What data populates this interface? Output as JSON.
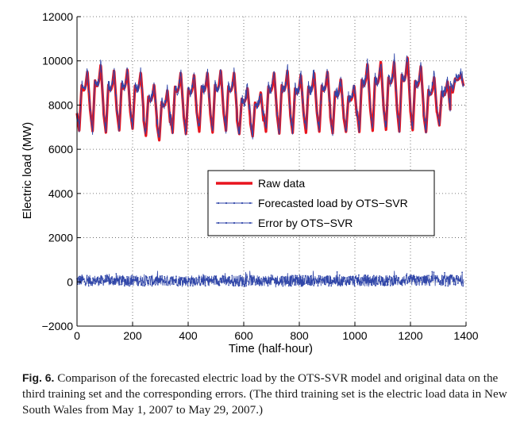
{
  "chart_data": {
    "type": "line",
    "title": "",
    "xlabel": "Time (half-hour)",
    "ylabel": "Electric load (MW)",
    "xlim": [
      0,
      1400
    ],
    "ylim": [
      -2000,
      12000
    ],
    "xticks": [
      0,
      200,
      400,
      600,
      800,
      1000,
      1200,
      1400
    ],
    "yticks": [
      -2000,
      0,
      2000,
      4000,
      6000,
      8000,
      10000,
      12000
    ],
    "grid": "dotted",
    "legend_position": "center-right",
    "days": 29,
    "points_per_day": 48,
    "daily_peaks": [
      9550,
      9850,
      9600,
      9650,
      9500,
      8950,
      8700,
      9500,
      9400,
      9500,
      9600,
      9500,
      8800,
      8600,
      9500,
      9600,
      9400,
      9500,
      9550,
      9200,
      8900,
      9900,
      10000,
      10000,
      10200,
      9800,
      9300,
      9100,
      9400
    ],
    "daily_troughs": [
      6600,
      6550,
      6500,
      6600,
      6700,
      6400,
      6200,
      6500,
      6450,
      6550,
      6500,
      6600,
      6500,
      6400,
      6550,
      6450,
      6500,
      6500,
      6550,
      6500,
      6600,
      6500,
      6550,
      6600,
      6500,
      6600,
      6550,
      6900,
      8500
    ],
    "error_range": [
      -400,
      500
    ],
    "series": [
      {
        "name": "Raw data",
        "color": "#e8141e",
        "style": "thick-line"
      },
      {
        "name": "Forecasted load by OTS−SVR",
        "color": "#3046a8",
        "style": "line-dot-markers"
      },
      {
        "name": "Error by OTS−SVR",
        "color": "#3046a8",
        "style": "line-dot-markers"
      }
    ]
  },
  "caption": {
    "label": "Fig. 6.",
    "text": "Comparison of the forecasted electric load by the OTS-SVR model and original data on the third training set and the corresponding errors. (The third training set is the electric load data in New South Wales from May 1, 2007 to May 29, 2007.)"
  }
}
